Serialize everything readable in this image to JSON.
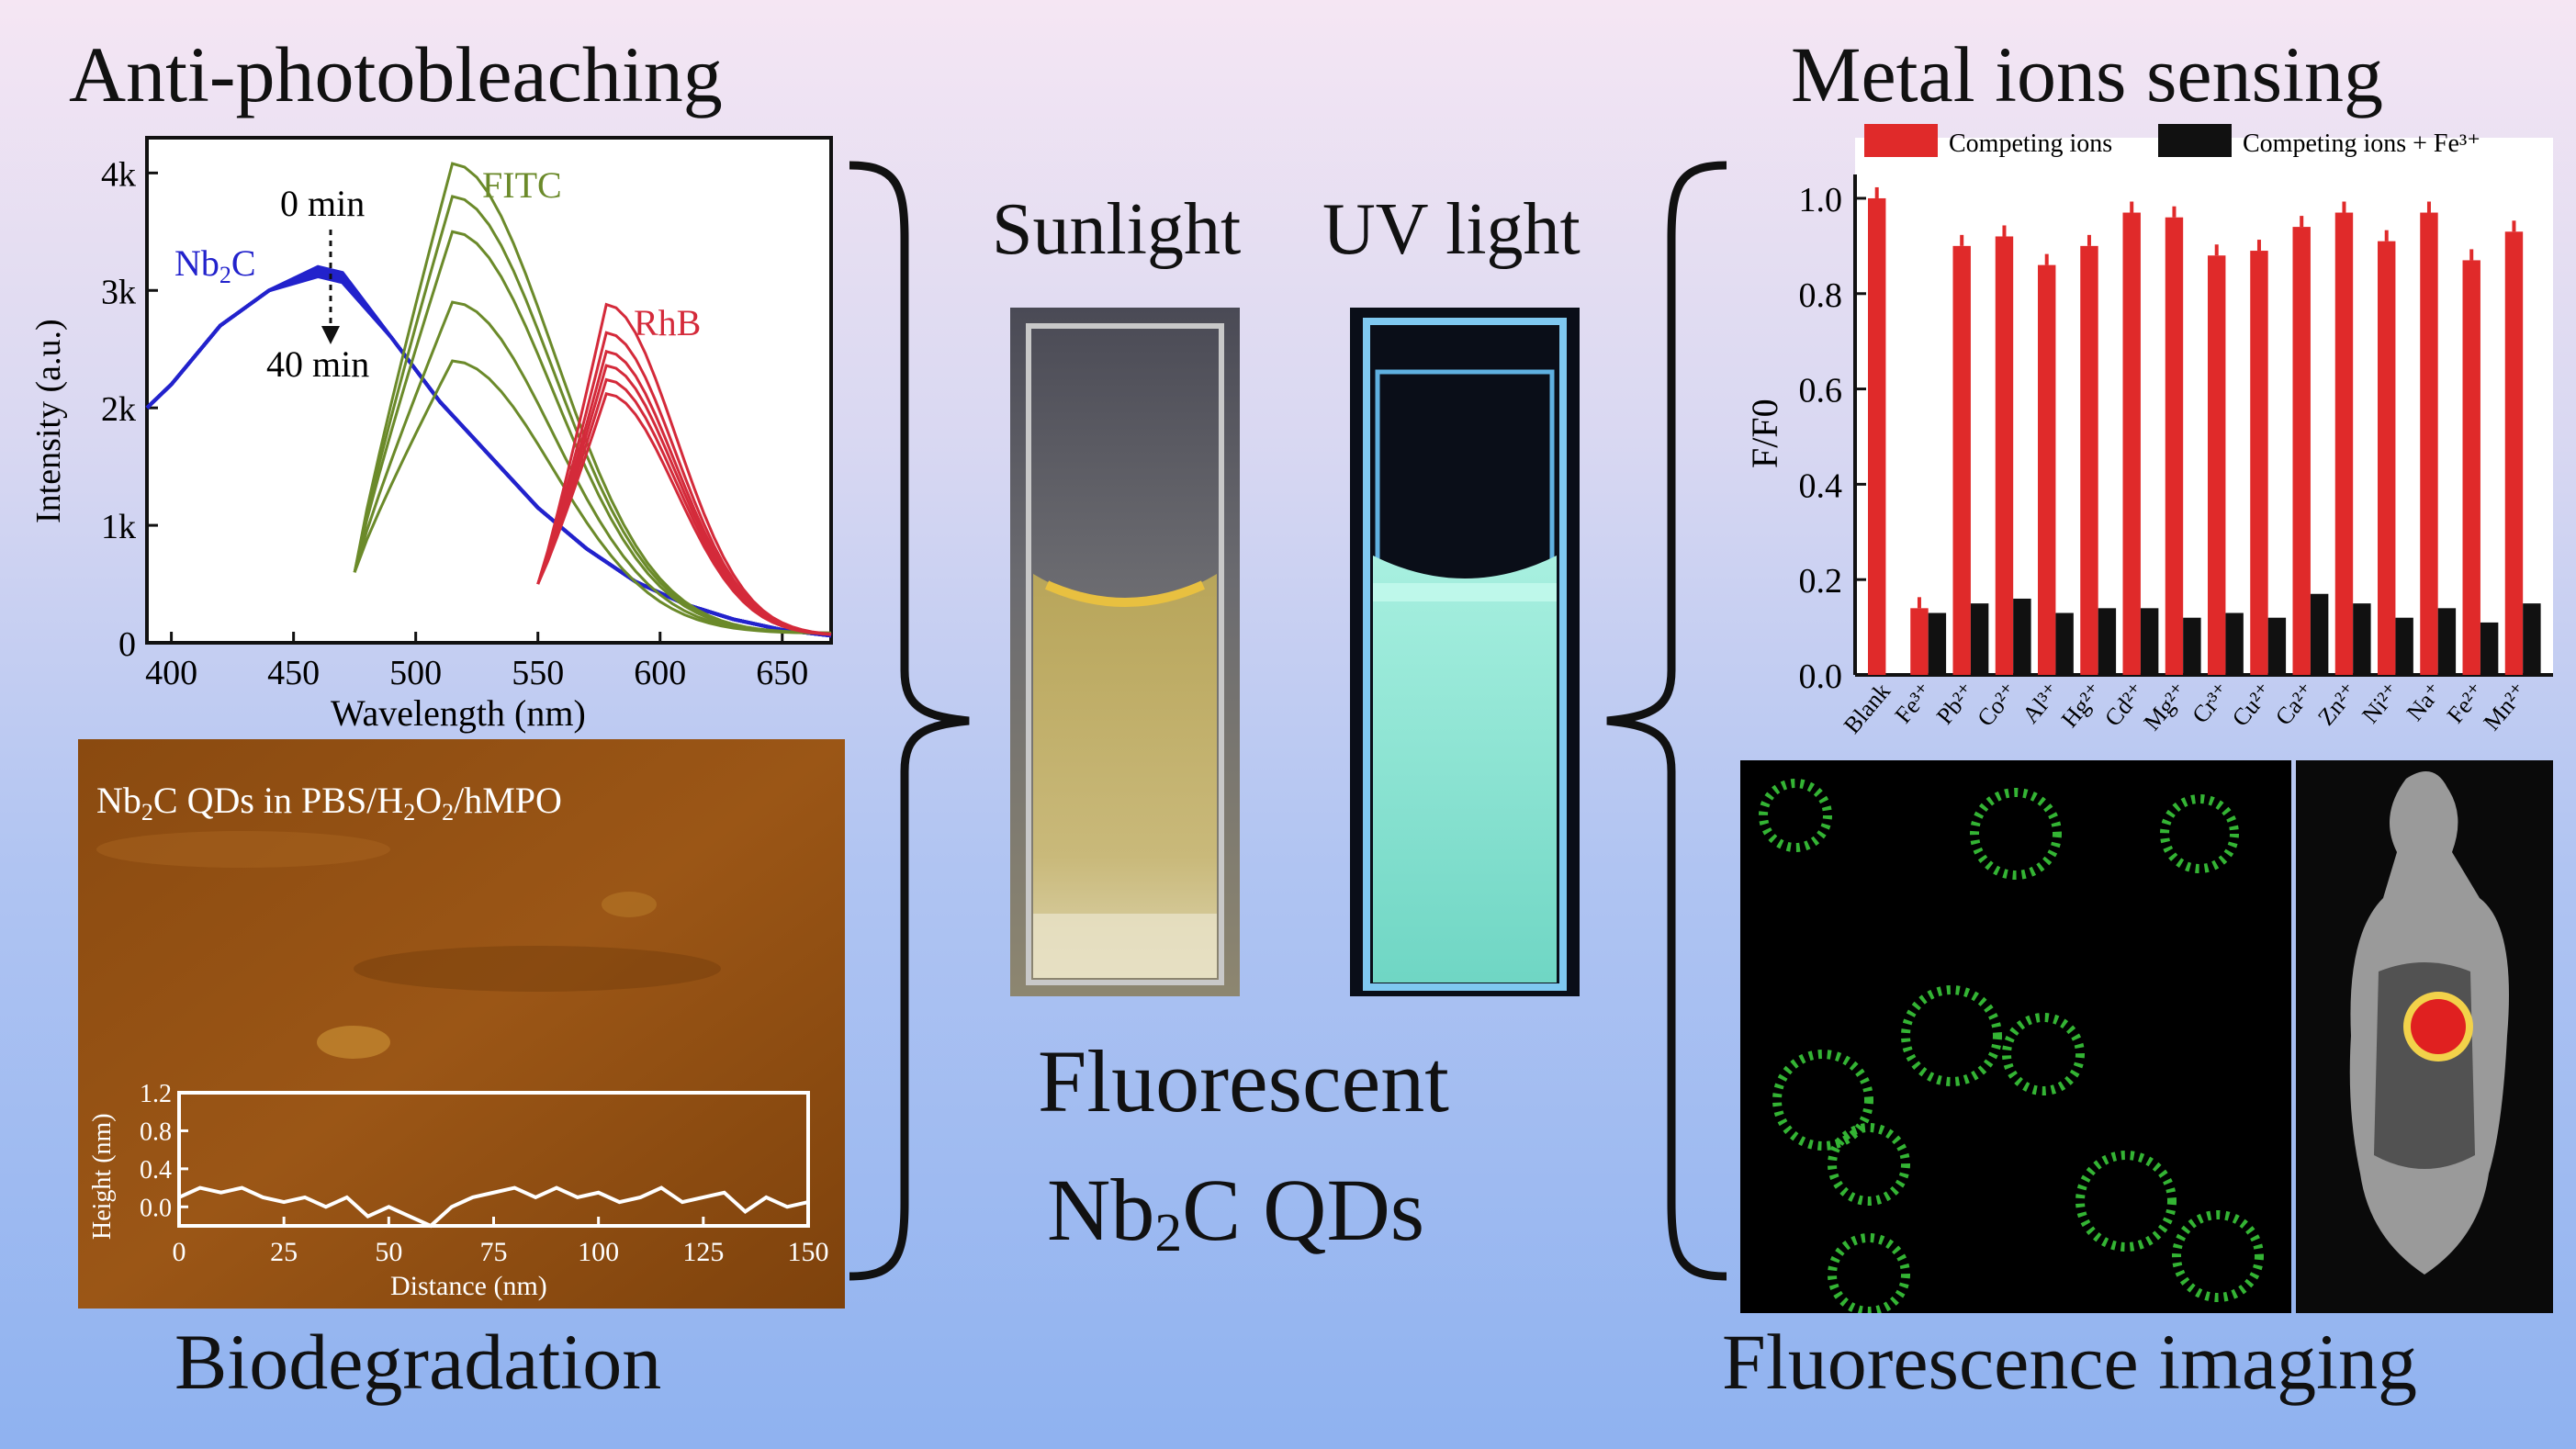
{
  "titles": {
    "top_left": "Anti-photobleaching",
    "top_right": "Metal ions sensing",
    "bottom_left": "Biodegradation",
    "bottom_right": "Fluorescence imaging",
    "sunlight": "Sunlight",
    "uv": "UV light",
    "center_line1": "Fluorescent",
    "center_line2_a": "Nb",
    "center_line2_sub": "2",
    "center_line2_b": "C QDs"
  },
  "colors": {
    "nb2c": "#2222cc",
    "fitc": "#6b8a2a",
    "rhb": "#d42a3a",
    "bar_red": "#e02a2a",
    "bar_black": "#111111"
  },
  "chart_data": [
    {
      "type": "line",
      "xlabel": "Wavelength (nm)",
      "ylabel": "Intensity (a.u.)",
      "xlim": [
        390,
        670
      ],
      "ylim": [
        0,
        4300
      ],
      "x_ticks": [
        "400",
        "450",
        "500",
        "550",
        "600",
        "650"
      ],
      "y_ticks": [
        "0",
        "1k",
        "2k",
        "3k",
        "4k"
      ],
      "labels": {
        "nb2c": "Nb",
        "nb2c_sub": "2",
        "nb2c_rest": "C",
        "fitc": "FITC",
        "rhb": "RhB",
        "t0": "0 min",
        "t40": "40 min"
      },
      "series": [
        {
          "name": "Nb2C",
          "x": [
            390,
            400,
            420,
            440,
            460,
            470,
            490,
            510,
            530,
            550,
            570,
            590,
            610,
            630,
            650,
            670
          ],
          "y": [
            2000,
            2200,
            2700,
            3000,
            3200,
            3150,
            2600,
            2050,
            1600,
            1150,
            800,
            520,
            330,
            200,
            110,
            60
          ]
        },
        {
          "name": "FITC",
          "peaks": [
            4080,
            3800,
            3500,
            2900,
            2400
          ]
        },
        {
          "name": "RhB",
          "peaks": [
            2880,
            2640,
            2480,
            2360,
            2240,
            2120
          ]
        }
      ]
    },
    {
      "type": "bar",
      "ylabel": "F/F0",
      "ylim": [
        0,
        1.05
      ],
      "y_ticks": [
        "0.0",
        "0.2",
        "0.4",
        "0.6",
        "0.8",
        "1.0"
      ],
      "legend": [
        "Competing ions",
        "Competing ions + Fe³⁺"
      ],
      "categories": [
        "Blank",
        "Fe³⁺",
        "Pb²⁺",
        "Co²⁺",
        "Al³⁺",
        "Hg²⁺",
        "Cd²⁺",
        "Mg²⁺",
        "Cr³⁺",
        "Cu²⁺",
        "Ca²⁺",
        "Zn²⁺",
        "Ni²⁺",
        "Na⁺",
        "Fe²⁺",
        "Mn²⁺"
      ],
      "series": [
        {
          "name": "Competing ions",
          "values": [
            1.0,
            0.14,
            0.9,
            0.92,
            0.86,
            0.9,
            0.97,
            0.96,
            0.88,
            0.89,
            0.94,
            0.97,
            0.91,
            0.97,
            0.87,
            0.93
          ]
        },
        {
          "name": "Competing ions + Fe³⁺",
          "values": [
            null,
            0.13,
            0.15,
            0.16,
            0.13,
            0.14,
            0.14,
            0.12,
            0.13,
            0.12,
            0.17,
            0.15,
            0.12,
            0.14,
            0.11,
            0.15
          ]
        }
      ]
    },
    {
      "type": "line",
      "xlabel": "Distance (nm)",
      "ylabel": "Height (nm)",
      "xlim": [
        0,
        150
      ],
      "ylim": [
        -0.2,
        1.2
      ],
      "x_ticks": [
        "0",
        "25",
        "50",
        "75",
        "100",
        "125",
        "150"
      ],
      "y_ticks": [
        "0.0",
        "0.4",
        "0.8",
        "1.2"
      ],
      "series": [
        {
          "name": "profile",
          "x": [
            0,
            5,
            10,
            15,
            20,
            25,
            30,
            35,
            40,
            45,
            50,
            55,
            60,
            65,
            70,
            75,
            80,
            85,
            90,
            95,
            100,
            105,
            110,
            115,
            120,
            125,
            130,
            135,
            140,
            145,
            150
          ],
          "y": [
            0.1,
            0.2,
            0.15,
            0.2,
            0.1,
            0.05,
            0.1,
            0.0,
            0.1,
            -0.1,
            0.0,
            -0.1,
            -0.2,
            0.0,
            0.1,
            0.15,
            0.2,
            0.1,
            0.2,
            0.1,
            0.15,
            0.05,
            0.1,
            0.2,
            0.05,
            0.1,
            0.15,
            -0.05,
            0.1,
            0.0,
            0.05
          ]
        }
      ]
    }
  ],
  "afm": {
    "label_a": "Nb",
    "label_sub1": "2",
    "label_b": "C QDs in PBS/H",
    "label_sub2": "2",
    "label_c": "O",
    "label_sub3": "2",
    "label_d": "/hMPO"
  }
}
